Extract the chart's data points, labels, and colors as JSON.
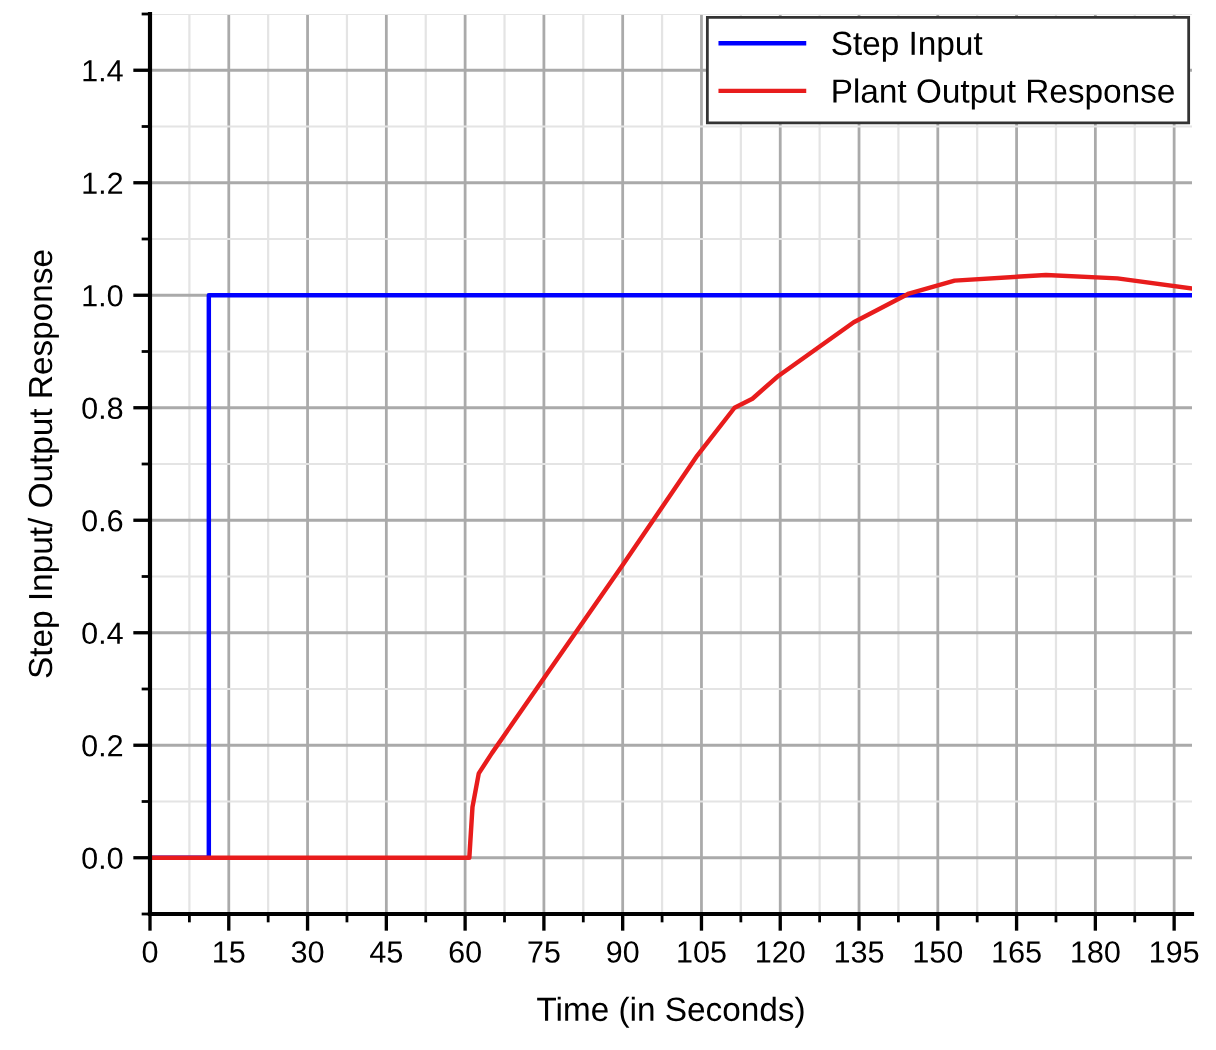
{
  "chart_data": {
    "type": "line",
    "xlabel": "Time (in Seconds)",
    "ylabel": "Step Input/ Output Response",
    "series": [
      {
        "name": "Step Input",
        "color": "#0000ff",
        "type": "step",
        "x": [
          0,
          11.2,
          198.4
        ],
        "values": [
          0,
          1,
          1
        ]
      },
      {
        "name": "Plant Output Response",
        "color": "#e81c1c",
        "x": [
          0,
          60.8,
          61.4,
          62.6,
          65.1,
          74.4,
          89.9,
          104.2,
          111.3,
          114.7,
          119.7,
          134.0,
          144.5,
          153.2,
          170.6,
          184.2,
          198.4
        ],
        "values": [
          0,
          0,
          0.09,
          0.15,
          0.186,
          0.311,
          0.519,
          0.715,
          0.8,
          0.816,
          0.857,
          0.952,
          1.003,
          1.026,
          1.036,
          1.03,
          1.012
        ]
      }
    ],
    "xlim": [
      0,
      198.4
    ],
    "ylim": [
      -0.1,
      1.5
    ],
    "xticks": [
      0,
      15,
      30,
      45,
      60,
      75,
      90,
      105,
      120,
      135,
      150,
      165,
      180,
      195
    ],
    "yticks": [
      {
        "value": 0,
        "label": "0.0"
      },
      {
        "value": 0.2,
        "label": "0.2"
      },
      {
        "value": 0.4,
        "label": "0.4"
      },
      {
        "value": 0.6,
        "label": "0.6"
      },
      {
        "value": 0.8,
        "label": "0.8"
      },
      {
        "value": 1.0,
        "label": "1.0"
      },
      {
        "value": 1.2,
        "label": "1.2"
      },
      {
        "value": 1.4,
        "label": "1.4"
      }
    ],
    "grid": true,
    "legend": "top right",
    "line_style": "solid",
    "marker": "none"
  }
}
